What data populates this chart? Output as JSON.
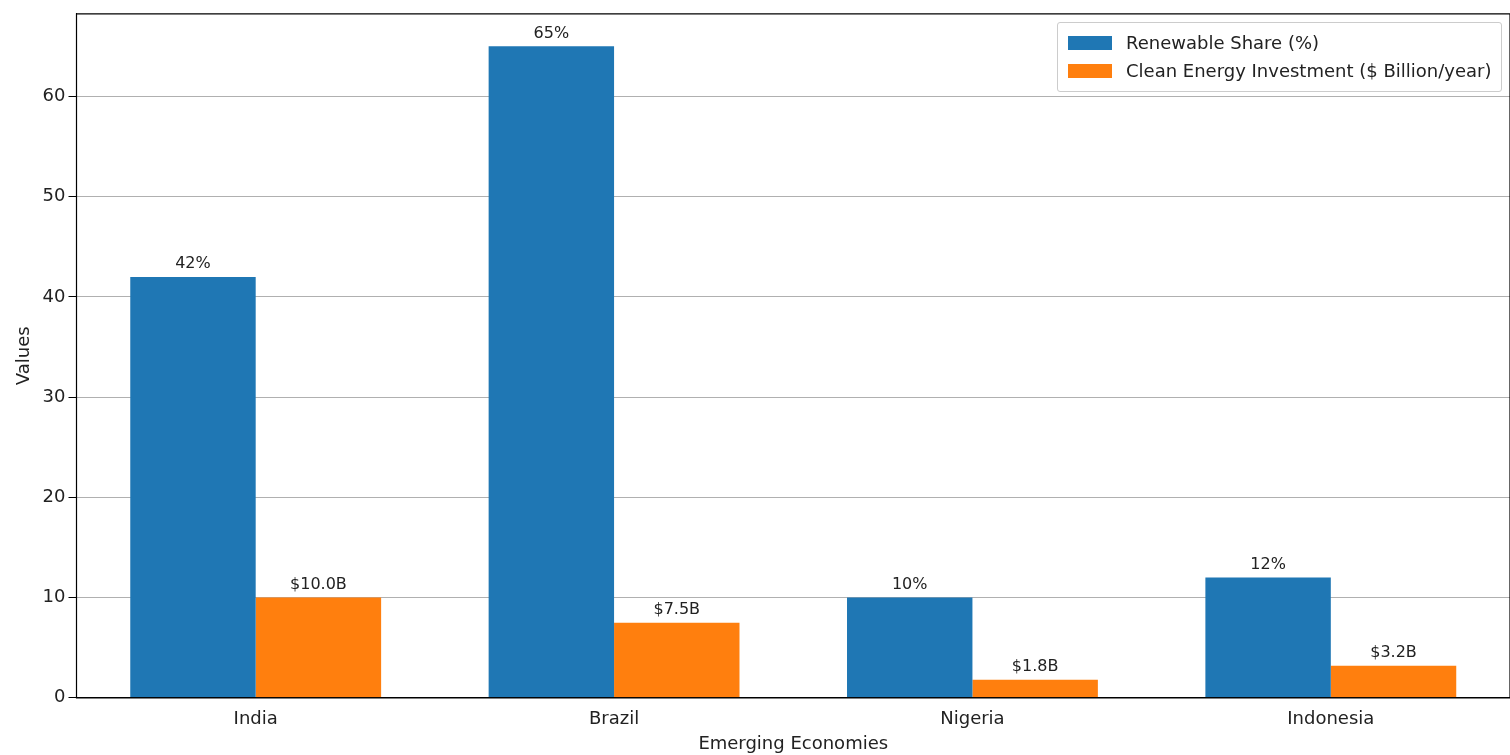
{
  "chart_data": {
    "type": "bar",
    "xlabel": "Emerging Economies",
    "ylabel": "Values",
    "categories": [
      "India",
      "Brazil",
      "Nigeria",
      "Indonesia"
    ],
    "series": [
      {
        "name": "Renewable Share (%)",
        "color": "#1f77b4",
        "values": [
          42,
          65,
          10,
          12
        ],
        "value_labels": [
          "42%",
          "65%",
          "10%",
          "12%"
        ]
      },
      {
        "name": "Clean Energy Investment ($ Billion/year)",
        "color": "#ff7f0e",
        "values": [
          10.0,
          7.5,
          1.8,
          3.2
        ],
        "value_labels": [
          "$10.0B",
          "$7.5B",
          "$1.8B",
          "$3.2B"
        ]
      }
    ],
    "ylim": [
      0,
      68.25
    ],
    "yticks": [
      0,
      10,
      20,
      30,
      40,
      50,
      60
    ],
    "grid": "y",
    "legend": "top right"
  }
}
